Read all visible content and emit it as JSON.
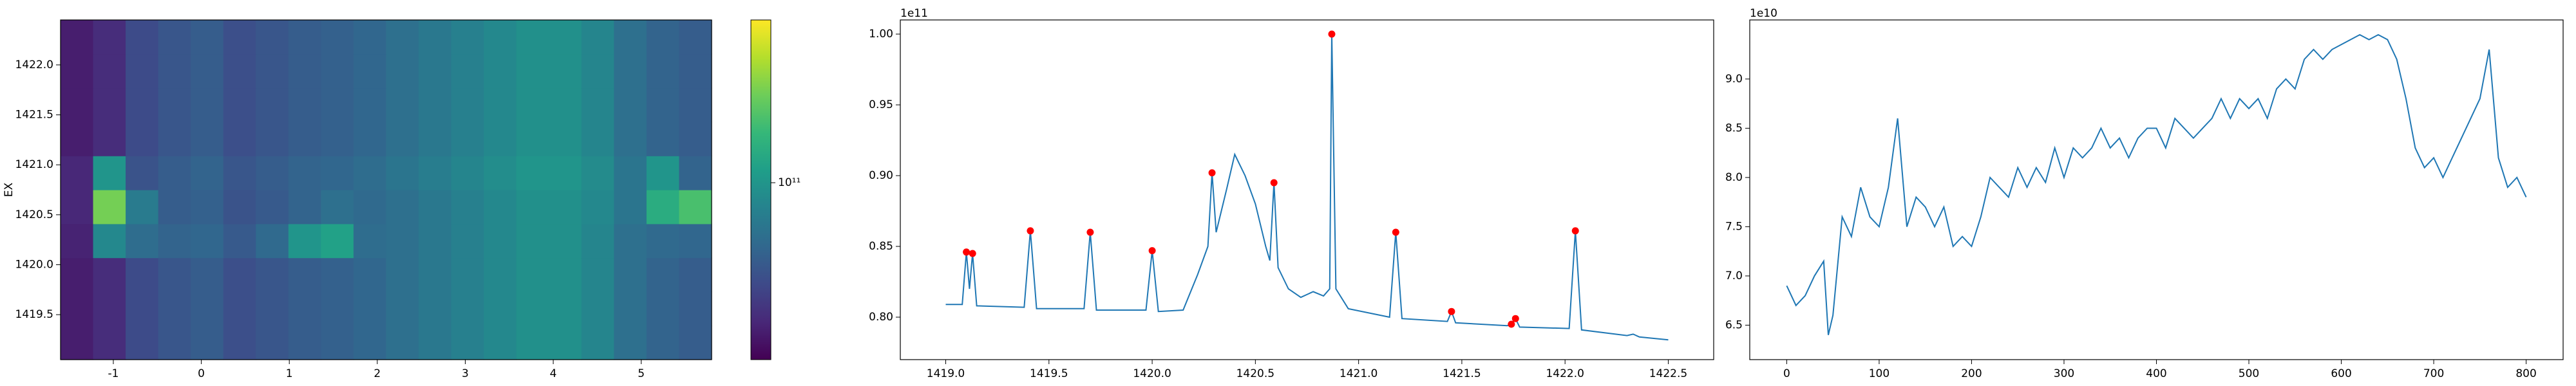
{
  "chart_data": [
    {
      "type": "heatmap",
      "ylabel": "EX",
      "xbins": [
        -1.6,
        -1.23,
        -0.86,
        -0.49,
        -0.12,
        0.25,
        0.62,
        0.99,
        1.36,
        1.73,
        2.1,
        2.47,
        2.84,
        3.21,
        3.58,
        3.95,
        4.32,
        4.69,
        5.06,
        5.43,
        5.8
      ],
      "ybins": [
        1419.05,
        1419.39,
        1419.73,
        1420.07,
        1420.41,
        1420.75,
        1421.09,
        1421.43,
        1421.77,
        1422.11,
        1422.45
      ],
      "z": [
        [
          65000000000.0,
          68000000000.0,
          75000000000.0,
          78000000000.0,
          80000000000.0,
          76000000000.0,
          78000000000.0,
          80000000000.0,
          81000000000.0,
          83000000000.0,
          86000000000.0,
          89000000000.0,
          92000000000.0,
          95000000000.0,
          98000000000.0,
          98000000000.0,
          94000000000.0,
          86000000000.0,
          82000000000.0,
          80000000000.0
        ],
        [
          65000000000.0,
          68000000000.0,
          75000000000.0,
          78000000000.0,
          80000000000.0,
          76000000000.0,
          78000000000.0,
          80000000000.0,
          81000000000.0,
          83000000000.0,
          86000000000.0,
          89000000000.0,
          92000000000.0,
          95000000000.0,
          98000000000.0,
          98000000000.0,
          94000000000.0,
          86000000000.0,
          82000000000.0,
          80000000000.0
        ],
        [
          65000000000.0,
          68000000000.0,
          75000000000.0,
          78000000000.0,
          80000000000.0,
          76000000000.0,
          78000000000.0,
          80000000000.0,
          81000000000.0,
          83000000000.0,
          86000000000.0,
          89000000000.0,
          92000000000.0,
          95000000000.0,
          98000000000.0,
          98000000000.0,
          94000000000.0,
          86000000000.0,
          82000000000.0,
          80000000000.0
        ],
        [
          66000000000.0,
          95000000000.0,
          85000000000.0,
          82000000000.0,
          83000000000.0,
          79000000000.0,
          84000000000.0,
          100000000000.0,
          105000000000.0,
          85000000000.0,
          86000000000.0,
          89000000000.0,
          92000000000.0,
          95000000000.0,
          98000000000.0,
          98000000000.0,
          94000000000.0,
          86000000000.0,
          84000000000.0,
          83000000000.0
        ],
        [
          67000000000.0,
          130000000000.0,
          90000000000.0,
          80000000000.0,
          81000000000.0,
          77000000000.0,
          79000000000.0,
          82000000000.0,
          86000000000.0,
          84000000000.0,
          86000000000.0,
          89000000000.0,
          92000000000.0,
          95000000000.0,
          98000000000.0,
          98000000000.0,
          95000000000.0,
          88000000000.0,
          110000000000.0,
          120000000000.0
        ],
        [
          67000000000.0,
          100000000000.0,
          77000000000.0,
          80000000000.0,
          82000000000.0,
          78000000000.0,
          80000000000.0,
          82000000000.0,
          83000000000.0,
          85000000000.0,
          88000000000.0,
          91000000000.0,
          94000000000.0,
          97000000000.0,
          100000000000.0,
          100000000000.0,
          96000000000.0,
          88000000000.0,
          100000000000.0,
          82000000000.0
        ],
        [
          65000000000.0,
          68000000000.0,
          75000000000.0,
          78000000000.0,
          80000000000.0,
          76000000000.0,
          78000000000.0,
          80000000000.0,
          81000000000.0,
          83000000000.0,
          86000000000.0,
          89000000000.0,
          92000000000.0,
          95000000000.0,
          98000000000.0,
          98000000000.0,
          94000000000.0,
          86000000000.0,
          82000000000.0,
          80000000000.0
        ],
        [
          65000000000.0,
          68000000000.0,
          75000000000.0,
          78000000000.0,
          80000000000.0,
          76000000000.0,
          78000000000.0,
          80000000000.0,
          81000000000.0,
          83000000000.0,
          86000000000.0,
          89000000000.0,
          92000000000.0,
          95000000000.0,
          98000000000.0,
          98000000000.0,
          94000000000.0,
          86000000000.0,
          82000000000.0,
          80000000000.0
        ],
        [
          65000000000.0,
          68000000000.0,
          75000000000.0,
          78000000000.0,
          80000000000.0,
          76000000000.0,
          78000000000.0,
          80000000000.0,
          81000000000.0,
          83000000000.0,
          86000000000.0,
          89000000000.0,
          92000000000.0,
          95000000000.0,
          98000000000.0,
          98000000000.0,
          94000000000.0,
          86000000000.0,
          82000000000.0,
          80000000000.0
        ],
        [
          65000000000.0,
          68000000000.0,
          75000000000.0,
          78000000000.0,
          80000000000.0,
          76000000000.0,
          78000000000.0,
          80000000000.0,
          81000000000.0,
          83000000000.0,
          86000000000.0,
          89000000000.0,
          92000000000.0,
          95000000000.0,
          98000000000.0,
          98000000000.0,
          94000000000.0,
          86000000000.0,
          82000000000.0,
          80000000000.0
        ]
      ],
      "xlim": [
        -1.6,
        5.8
      ],
      "xticks": [
        -1,
        0,
        1,
        2,
        3,
        4,
        5
      ],
      "ylim": [
        1419.05,
        1422.45
      ],
      "yticks": [
        1419.5,
        {
          "value": 1420,
          "label": "1420.0"
        },
        1420.5,
        {
          "value": 1421,
          "label": "1421.0"
        },
        1421.5,
        {
          "value": 1422,
          "label": "1422.0"
        }
      ],
      "colormap": "viridis",
      "colorbar": {
        "scale": "log",
        "lim": [
          60000000000.0,
          160000000000.0
        ],
        "ticks": [
          {
            "value": 100000000000.0,
            "label": "10¹¹"
          }
        ]
      }
    },
    {
      "type": "line",
      "offset_text": "1e11",
      "x": [
        1419.0,
        1419.08,
        1419.1,
        1419.115,
        1419.13,
        1419.15,
        1419.38,
        1419.41,
        1419.44,
        1419.67,
        1419.7,
        1419.73,
        1419.97,
        1420.0,
        1420.03,
        1420.15,
        1420.22,
        1420.27,
        1420.29,
        1420.31,
        1420.36,
        1420.4,
        1420.45,
        1420.5,
        1420.55,
        1420.57,
        1420.59,
        1420.61,
        1420.66,
        1420.72,
        1420.78,
        1420.83,
        1420.86,
        1420.87,
        1420.89,
        1420.95,
        1421.15,
        1421.18,
        1421.21,
        1421.43,
        1421.45,
        1421.47,
        1421.72,
        1421.74,
        1421.76,
        1421.78,
        1422.02,
        1422.05,
        1422.08,
        1422.3,
        1422.33,
        1422.36,
        1422.5
      ],
      "series": [
        {
          "color": "#1f77b4",
          "values": [
            0.809,
            0.809,
            0.846,
            0.82,
            0.845,
            0.808,
            0.807,
            0.861,
            0.806,
            0.806,
            0.86,
            0.805,
            0.805,
            0.847,
            0.804,
            0.805,
            0.83,
            0.85,
            0.902,
            0.86,
            0.89,
            0.915,
            0.9,
            0.88,
            0.85,
            0.84,
            0.895,
            0.835,
            0.82,
            0.814,
            0.818,
            0.815,
            0.82,
            1.0,
            0.82,
            0.806,
            0.8,
            0.86,
            0.799,
            0.797,
            0.804,
            0.796,
            0.794,
            0.795,
            0.799,
            0.793,
            0.792,
            0.861,
            0.791,
            0.787,
            0.788,
            0.786,
            0.784
          ]
        }
      ],
      "markers": {
        "color": "#ff0000",
        "x": [
          1419.1,
          1419.13,
          1419.41,
          1419.7,
          1420.0,
          1420.29,
          1420.59,
          1420.87,
          1421.18,
          1421.45,
          1421.74,
          1421.76,
          1422.05
        ],
        "values": [
          0.846,
          0.845,
          0.861,
          0.86,
          0.847,
          0.902,
          0.895,
          1.0,
          0.86,
          0.804,
          0.795,
          0.799,
          0.861
        ]
      },
      "xlim": [
        1418.78,
        1422.72
      ],
      "xticks": [
        {
          "value": 1419,
          "label": "1419.0"
        },
        1419.5,
        {
          "value": 1420,
          "label": "1420.0"
        },
        1420.5,
        {
          "value": 1421,
          "label": "1421.0"
        },
        1421.5,
        {
          "value": 1422,
          "label": "1422.0"
        },
        1422.5
      ],
      "ylim": [
        0.77,
        1.01
      ],
      "yticks": [
        {
          "value": 0.8,
          "label": "0.80"
        },
        0.85,
        {
          "value": 0.9,
          "label": "0.90"
        },
        0.95,
        {
          "value": 1,
          "label": "1.00"
        }
      ]
    },
    {
      "type": "line",
      "offset_text": "1e10",
      "x": [
        0,
        10,
        20,
        30,
        40,
        45,
        50,
        60,
        70,
        80,
        90,
        100,
        110,
        120,
        130,
        140,
        150,
        160,
        170,
        180,
        190,
        200,
        210,
        220,
        230,
        240,
        250,
        260,
        270,
        280,
        290,
        300,
        310,
        320,
        330,
        340,
        350,
        360,
        370,
        380,
        390,
        400,
        410,
        420,
        430,
        440,
        450,
        460,
        470,
        480,
        490,
        500,
        510,
        520,
        530,
        540,
        550,
        560,
        570,
        580,
        590,
        600,
        610,
        620,
        630,
        640,
        650,
        660,
        670,
        680,
        690,
        700,
        710,
        720,
        730,
        740,
        750,
        760,
        770,
        780,
        790,
        800
      ],
      "series": [
        {
          "color": "#1f77b4",
          "values": [
            6.9,
            6.7,
            6.8,
            7.0,
            7.15,
            6.4,
            6.6,
            7.6,
            7.4,
            7.9,
            7.6,
            7.5,
            7.9,
            8.6,
            7.5,
            7.8,
            7.7,
            7.5,
            7.7,
            7.3,
            7.4,
            7.3,
            7.6,
            8.0,
            7.9,
            7.8,
            8.1,
            7.9,
            8.1,
            7.95,
            8.3,
            8.0,
            8.3,
            8.2,
            8.3,
            8.5,
            8.3,
            8.4,
            8.2,
            8.4,
            8.5,
            8.5,
            8.3,
            8.6,
            8.5,
            8.4,
            8.5,
            8.6,
            8.8,
            8.6,
            8.8,
            8.7,
            8.8,
            8.6,
            8.9,
            9.0,
            8.9,
            9.2,
            9.3,
            9.2,
            9.3,
            9.35,
            9.4,
            9.45,
            9.4,
            9.45,
            9.4,
            9.2,
            8.8,
            8.3,
            8.1,
            8.2,
            8.0,
            8.2,
            8.4,
            8.6,
            8.8,
            9.3,
            8.2,
            7.9,
            8.0,
            7.8
          ]
        }
      ],
      "xlim": [
        -40,
        840
      ],
      "xticks": [
        0,
        100,
        200,
        300,
        400,
        500,
        600,
        700,
        800
      ],
      "ylim": [
        6.15,
        9.6
      ],
      "yticks": [
        6.5,
        {
          "value": 7,
          "label": "7.0"
        },
        7.5,
        {
          "value": 8,
          "label": "8.0"
        },
        8.5,
        {
          "value": 9,
          "label": "9.0"
        }
      ]
    }
  ]
}
